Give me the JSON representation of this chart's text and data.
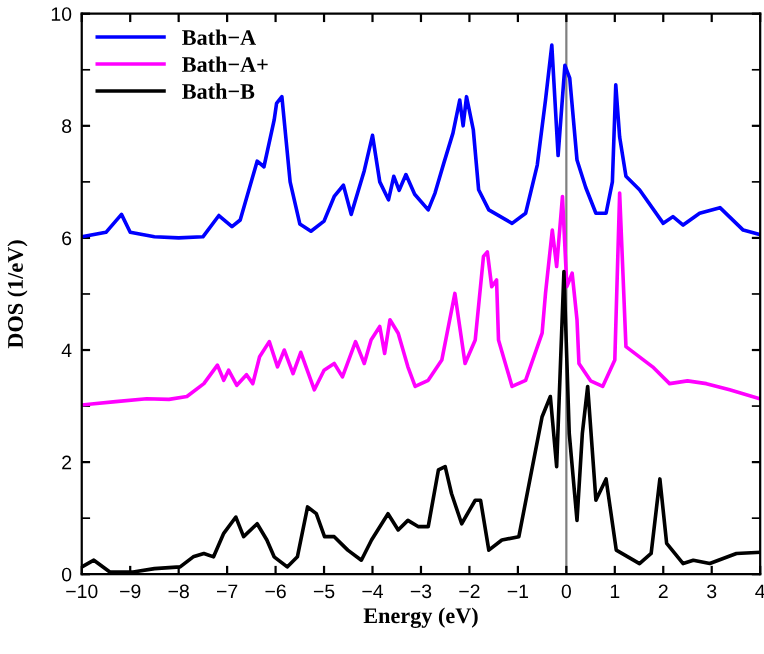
{
  "chart_data": {
    "type": "line",
    "xlabel": "Energy (eV)",
    "ylabel": "DOS (1/eV)",
    "xlim": [
      -10,
      4
    ],
    "ylim": [
      0,
      10
    ],
    "xticks": [
      -10,
      -9,
      -8,
      -7,
      -6,
      -5,
      -4,
      -3,
      -2,
      -1,
      0,
      1,
      2,
      3,
      4
    ],
    "yticks": [
      0,
      2,
      4,
      6,
      8,
      10
    ],
    "grid": false,
    "legend": "top left",
    "marker": "none",
    "line_style": "solid",
    "ref_lines": [
      {
        "axis": "x",
        "value": 0,
        "color": "#808080"
      }
    ],
    "series": [
      {
        "name": "Bath−A",
        "color": "#0000ff",
        "x": [
          -10,
          -9.5,
          -9.18,
          -9.0,
          -8.5,
          -8.0,
          -7.5,
          -7.17,
          -6.9,
          -6.73,
          -6.38,
          -6.24,
          -6.03,
          -5.98,
          -5.87,
          -5.7,
          -5.5,
          -5.27,
          -5.0,
          -4.79,
          -4.6,
          -4.44,
          -4.17,
          -4.0,
          -3.85,
          -3.67,
          -3.56,
          -3.45,
          -3.31,
          -3.13,
          -2.85,
          -2.71,
          -2.53,
          -2.34,
          -2.2,
          -2.13,
          -2.06,
          -1.92,
          -1.81,
          -1.6,
          -1.12,
          -0.84,
          -0.6,
          -0.43,
          -0.3,
          -0.17,
          -0.03,
          0.07,
          0.22,
          0.4,
          0.61,
          0.82,
          0.95,
          1.02,
          1.1,
          1.23,
          1.51,
          2.0,
          2.2,
          2.41,
          2.75,
          3.17,
          3.65,
          4.0
        ],
        "values": [
          6.02,
          6.1,
          6.42,
          6.1,
          6.02,
          6.0,
          6.02,
          6.4,
          6.2,
          6.32,
          7.37,
          7.27,
          8.1,
          8.4,
          8.52,
          7.0,
          6.25,
          6.12,
          6.3,
          6.74,
          6.94,
          6.42,
          7.2,
          7.83,
          7.0,
          6.68,
          7.1,
          6.85,
          7.13,
          6.78,
          6.5,
          6.8,
          7.33,
          7.87,
          8.46,
          8.0,
          8.52,
          7.93,
          6.86,
          6.5,
          6.26,
          6.44,
          7.3,
          8.46,
          9.44,
          7.47,
          9.08,
          8.85,
          7.39,
          6.9,
          6.44,
          6.44,
          7.0,
          8.73,
          7.8,
          7.1,
          6.86,
          6.26,
          6.38,
          6.23,
          6.44,
          6.54,
          6.14,
          6.06
        ]
      },
      {
        "name": "Bath−A+",
        "color": "#ff00ff",
        "x": [
          -10,
          -9.3,
          -8.66,
          -8.2,
          -7.83,
          -7.48,
          -7.2,
          -7.07,
          -6.97,
          -6.8,
          -6.6,
          -6.47,
          -6.33,
          -6.13,
          -5.96,
          -5.82,
          -5.64,
          -5.48,
          -5.2,
          -5.0,
          -4.79,
          -4.62,
          -4.35,
          -4.17,
          -4.03,
          -3.85,
          -3.75,
          -3.64,
          -3.47,
          -3.27,
          -3.12,
          -2.85,
          -2.57,
          -2.3,
          -2.09,
          -1.88,
          -1.71,
          -1.63,
          -1.54,
          -1.44,
          -1.4,
          -1.12,
          -0.84,
          -0.5,
          -0.43,
          -0.29,
          -0.2,
          -0.08,
          0.01,
          0.12,
          0.22,
          0.26,
          0.5,
          0.75,
          1.0,
          1.1,
          1.23,
          1.78,
          2.13,
          2.5,
          2.89,
          3.37,
          4.0
        ],
        "values": [
          3.02,
          3.08,
          3.13,
          3.12,
          3.17,
          3.4,
          3.73,
          3.46,
          3.64,
          3.37,
          3.56,
          3.4,
          3.88,
          4.15,
          3.7,
          4.0,
          3.58,
          3.96,
          3.29,
          3.64,
          3.76,
          3.52,
          4.15,
          3.76,
          4.18,
          4.42,
          3.94,
          4.54,
          4.3,
          3.7,
          3.35,
          3.46,
          3.82,
          5.01,
          3.76,
          4.18,
          5.67,
          5.75,
          5.13,
          5.25,
          4.18,
          3.35,
          3.46,
          4.3,
          5.01,
          6.14,
          5.49,
          6.74,
          5.13,
          5.37,
          4.54,
          3.76,
          3.45,
          3.35,
          3.82,
          6.8,
          4.06,
          3.7,
          3.4,
          3.45,
          3.4,
          3.29,
          3.13
        ]
      },
      {
        "name": "Bath−B",
        "color": "#000000",
        "x": [
          -10,
          -9.75,
          -9.42,
          -8.94,
          -8.5,
          -7.97,
          -7.7,
          -7.48,
          -7.28,
          -7.07,
          -6.82,
          -6.66,
          -6.38,
          -6.18,
          -6.03,
          -5.76,
          -5.55,
          -5.34,
          -5.16,
          -4.99,
          -4.79,
          -4.51,
          -4.23,
          -4.02,
          -3.68,
          -3.47,
          -3.27,
          -3.06,
          -2.85,
          -2.64,
          -2.5,
          -2.37,
          -2.16,
          -1.88,
          -1.77,
          -1.6,
          -1.33,
          -0.98,
          -0.5,
          -0.33,
          -0.2,
          -0.05,
          0.06,
          0.22,
          0.33,
          0.44,
          0.61,
          0.82,
          1.03,
          1.51,
          1.75,
          1.93,
          2.07,
          2.41,
          2.62,
          2.96,
          3.51,
          4.0
        ],
        "values": [
          0.13,
          0.25,
          0.04,
          0.04,
          0.1,
          0.13,
          0.31,
          0.37,
          0.31,
          0.73,
          1.02,
          0.67,
          0.9,
          0.61,
          0.31,
          0.13,
          0.31,
          1.2,
          1.08,
          0.67,
          0.67,
          0.43,
          0.25,
          0.61,
          1.08,
          0.79,
          0.96,
          0.85,
          0.85,
          1.86,
          1.92,
          1.44,
          0.9,
          1.32,
          1.32,
          0.43,
          0.61,
          0.67,
          2.81,
          3.17,
          1.92,
          5.4,
          2.51,
          0.96,
          2.51,
          3.35,
          1.32,
          1.7,
          0.43,
          0.19,
          0.37,
          1.7,
          0.55,
          0.19,
          0.25,
          0.19,
          0.37,
          0.39
        ]
      }
    ]
  }
}
